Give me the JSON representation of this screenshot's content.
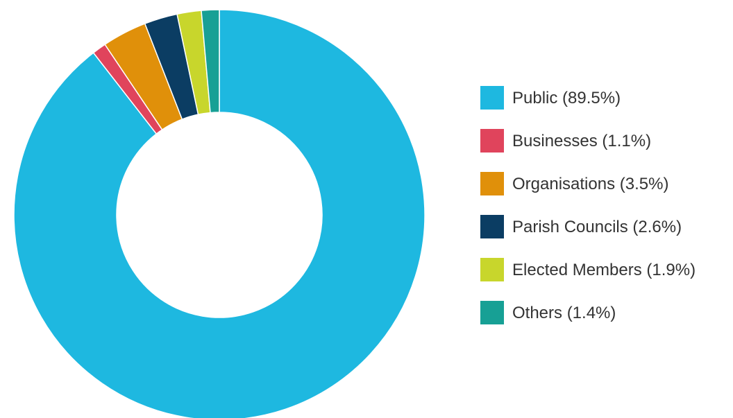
{
  "chart_data": {
    "type": "pie",
    "variant": "donut",
    "title": "",
    "legend_position": "right",
    "slices": [
      {
        "label": "Public (89.5%)",
        "name": "Public",
        "value": 89.5,
        "color": "#1eb8e0"
      },
      {
        "label": "Businesses (1.1%)",
        "name": "Businesses",
        "value": 1.1,
        "color": "#e0445c"
      },
      {
        "label": "Organisations (3.5%)",
        "name": "Organisations",
        "value": 3.5,
        "color": "#e0900a"
      },
      {
        "label": "Parish Councils (2.6%)",
        "name": "Parish Councils",
        "value": 2.6,
        "color": "#0b3d63"
      },
      {
        "label": "Elected Members (1.9%)",
        "name": "Elected Members",
        "value": 1.9,
        "color": "#c8d62c"
      },
      {
        "label": "Others (1.4%)",
        "name": "Others",
        "value": 1.4,
        "color": "#17a095"
      }
    ]
  }
}
